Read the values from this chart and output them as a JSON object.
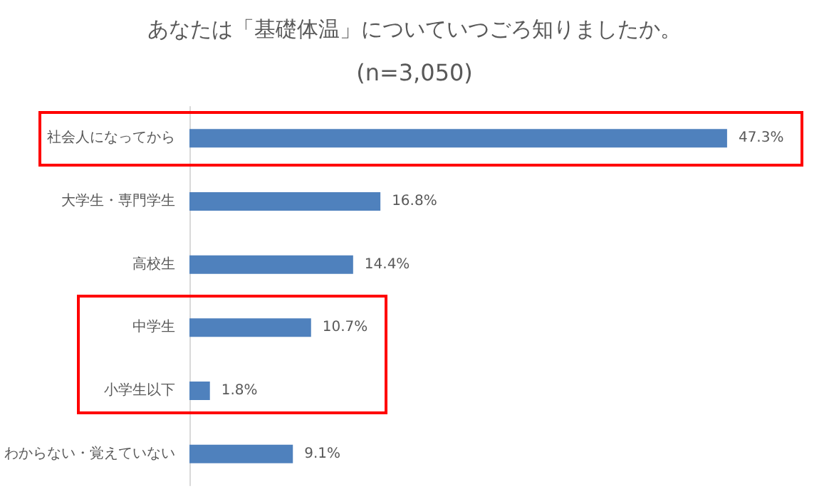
{
  "chart_data": {
    "type": "bar",
    "orientation": "horizontal",
    "title": "あなたは「基礎体温」についていつごろ知りましたか。",
    "subtitle": "(n=3,050)",
    "categories": [
      "社会人になってから",
      "大学生・専門学生",
      "高校生",
      "中学生",
      "小学生以下",
      "わからない・覚えていない"
    ],
    "values": [
      47.3,
      16.8,
      14.4,
      10.7,
      1.8,
      9.1
    ],
    "value_labels": [
      "47.3%",
      "16.8%",
      "14.4%",
      "10.7%",
      "1.8%",
      "9.1%"
    ],
    "color": "#4f81bd",
    "grid": false
  }
}
